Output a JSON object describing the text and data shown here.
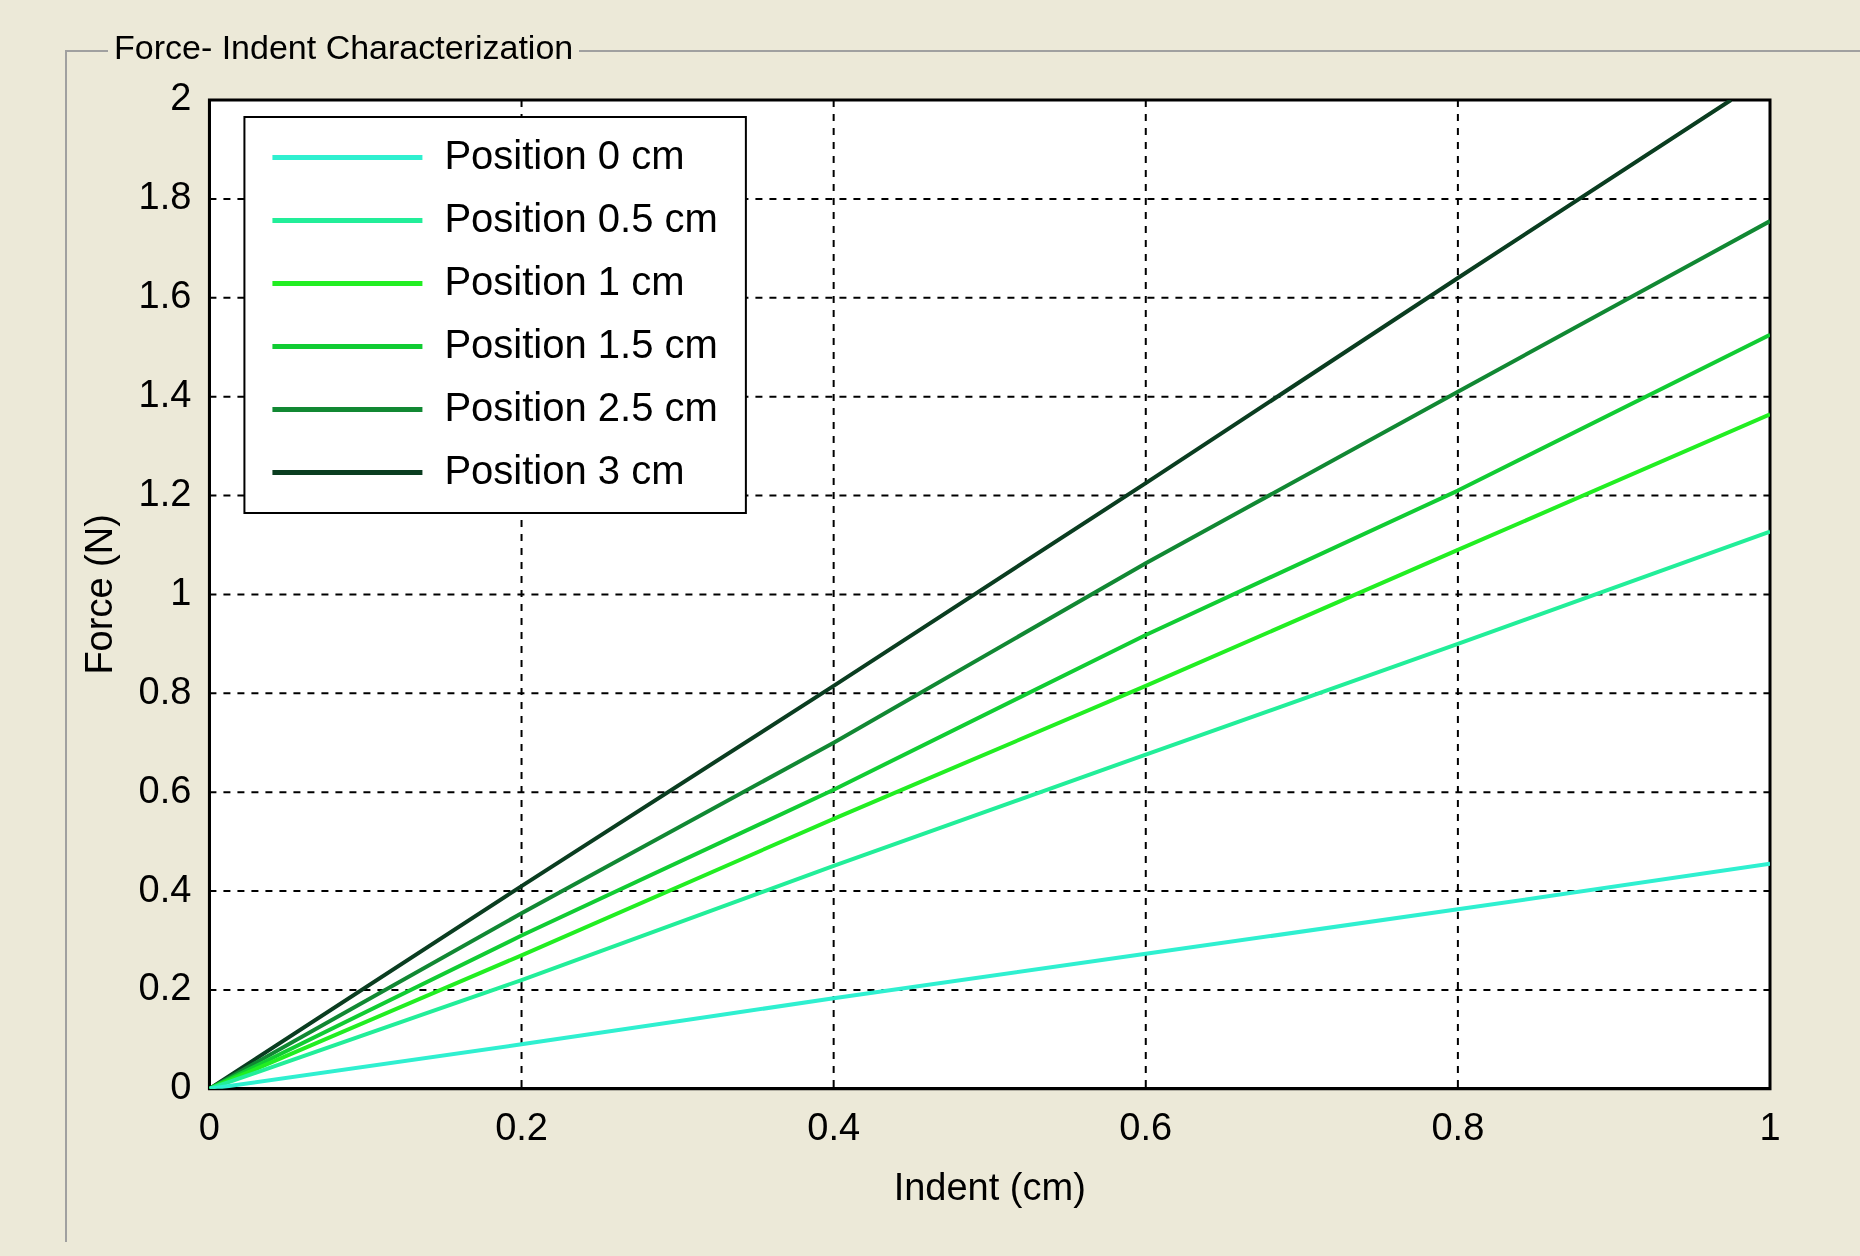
{
  "chart_data": {
    "type": "line",
    "title": "Force- Indent Characterization",
    "xlabel": "Indent (cm)",
    "ylabel": "Force (N)",
    "xlim": [
      0,
      1
    ],
    "ylim": [
      0,
      2
    ],
    "xticks": [
      0,
      0.2,
      0.4,
      0.6,
      0.8,
      1
    ],
    "yticks": [
      0,
      0.2,
      0.4,
      0.6,
      0.8,
      1,
      1.2,
      1.4,
      1.6,
      1.8,
      2
    ],
    "grid": true,
    "legend": "top left",
    "marker": "none",
    "line_style": "solid",
    "series": [
      {
        "name": "Position 0 cm",
        "color": "#2ff0d0",
        "x": [
          0,
          0.2,
          0.4,
          0.6,
          0.8,
          1
        ],
        "values": [
          0,
          0.09,
          0.183,
          0.273,
          0.363,
          0.455
        ]
      },
      {
        "name": "Position 0.5 cm",
        "color": "#22ee99",
        "x": [
          0,
          0.2,
          0.4,
          0.6,
          0.8,
          1
        ],
        "values": [
          0,
          0.22,
          0.451,
          0.676,
          0.9,
          1.127
        ]
      },
      {
        "name": "Position 1 cm",
        "color": "#22ee22",
        "x": [
          0,
          0.2,
          0.4,
          0.6,
          0.8,
          1
        ],
        "values": [
          0,
          0.27,
          0.546,
          0.815,
          1.09,
          1.364
        ]
      },
      {
        "name": "Position 1.5 cm",
        "color": "#11cc33",
        "x": [
          0,
          0.2,
          0.4,
          0.6,
          0.8,
          1
        ],
        "values": [
          0,
          0.31,
          0.605,
          0.918,
          1.21,
          1.525
        ]
      },
      {
        "name": "Position 2.5 cm",
        "color": "#118833",
        "x": [
          0,
          0.2,
          0.4,
          0.6,
          0.8,
          1
        ],
        "values": [
          0,
          0.355,
          0.7,
          1.063,
          1.41,
          1.755
        ]
      },
      {
        "name": "Position 3 cm",
        "color": "#0a3d20",
        "x": [
          0,
          0.2,
          0.4,
          0.6,
          0.8,
          0.975
        ],
        "values": [
          0,
          0.41,
          0.815,
          1.225,
          1.64,
          2
        ]
      }
    ]
  }
}
